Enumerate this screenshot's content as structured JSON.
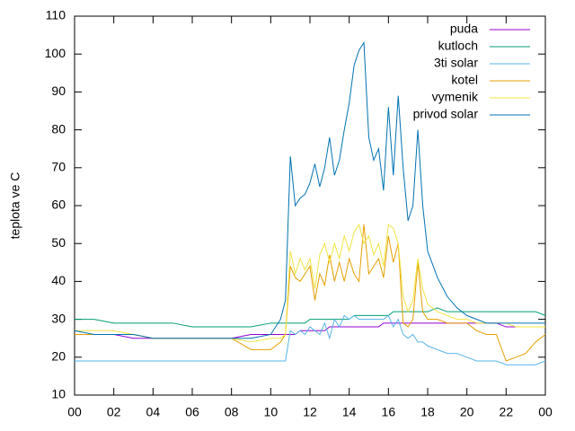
{
  "chart_data": {
    "type": "line",
    "ylabel": "teplota ve C",
    "x": [
      0,
      1,
      2,
      3,
      4,
      5,
      6,
      7,
      8,
      9,
      10,
      10.5,
      10.75,
      11,
      11.25,
      11.5,
      11.75,
      12,
      12.25,
      12.5,
      12.75,
      13,
      13.25,
      13.5,
      13.75,
      14,
      14.25,
      14.5,
      14.75,
      15,
      15.25,
      15.5,
      15.75,
      16,
      16.25,
      16.5,
      16.75,
      17,
      17.25,
      17.5,
      17.75,
      18,
      18.5,
      19,
      19.5,
      20,
      20.5,
      21,
      21.5,
      22,
      22.5,
      23,
      23.5,
      24
    ],
    "series": [
      {
        "name": "puda",
        "color": "#9400d3",
        "values": [
          26,
          26,
          26,
          25,
          25,
          25,
          25,
          25,
          25,
          26,
          26,
          26,
          26,
          26,
          26,
          27,
          27,
          27,
          27,
          27,
          27,
          28,
          28,
          28,
          28,
          28,
          28,
          28,
          28,
          28,
          28,
          28,
          29,
          29,
          29,
          29,
          29,
          29,
          29,
          29,
          29,
          29,
          29,
          29,
          29,
          29,
          29,
          29,
          29,
          28,
          28,
          28,
          28,
          28
        ]
      },
      {
        "name": "kutloch",
        "color": "#009e73",
        "values": [
          30,
          30,
          29,
          29,
          29,
          29,
          28,
          28,
          28,
          28,
          29,
          29,
          29,
          29,
          29,
          29,
          29,
          30,
          30,
          30,
          30,
          30,
          30,
          30,
          30,
          30,
          31,
          31,
          31,
          31,
          31,
          31,
          31,
          31,
          32,
          32,
          32,
          32,
          32,
          32,
          32,
          32,
          33,
          32,
          32,
          32,
          32,
          32,
          32,
          32,
          32,
          32,
          32,
          31
        ]
      },
      {
        "name": "3ti solar",
        "color": "#56b4e9",
        "values": [
          19,
          19,
          19,
          19,
          19,
          19,
          19,
          19,
          19,
          19,
          19,
          19,
          19,
          27,
          26,
          27,
          26,
          28,
          27,
          26,
          29,
          25,
          30,
          28,
          31,
          30,
          31,
          30,
          30,
          30,
          30,
          30,
          30,
          31,
          28,
          30,
          26,
          25,
          26,
          24,
          24,
          23,
          22,
          21,
          21,
          20,
          19,
          19,
          19,
          18,
          18,
          18,
          18,
          19
        ]
      },
      {
        "name": "kotel",
        "color": "#e69f00",
        "values": [
          26,
          26,
          26,
          26,
          25,
          25,
          25,
          25,
          25,
          22,
          22,
          24,
          26,
          44,
          41,
          40,
          42,
          44,
          35,
          42,
          39,
          47,
          40,
          45,
          40,
          46,
          42,
          40,
          55,
          42,
          44,
          46,
          41,
          52,
          45,
          50,
          29,
          28,
          30,
          45,
          32,
          30,
          30,
          29,
          29,
          29,
          27,
          26,
          26,
          19,
          20,
          21,
          24,
          26
        ]
      },
      {
        "name": "vymenik",
        "color": "#f0e442",
        "values": [
          27,
          27,
          27,
          26,
          25,
          25,
          25,
          25,
          25,
          24,
          25,
          25,
          26,
          48,
          42,
          46,
          43,
          46,
          38,
          47,
          50,
          45,
          50,
          46,
          52,
          48,
          53,
          55,
          50,
          52,
          47,
          50,
          44,
          55,
          54,
          50,
          36,
          32,
          35,
          46,
          38,
          34,
          32,
          31,
          30,
          30,
          29,
          29,
          29,
          29,
          28,
          28,
          28,
          28
        ]
      },
      {
        "name": "privod solar",
        "color": "#0072b2",
        "values": [
          27,
          26,
          26,
          26,
          25,
          25,
          25,
          25,
          25,
          25,
          26,
          30,
          35,
          73,
          60,
          62,
          63,
          66,
          71,
          65,
          70,
          78,
          68,
          72,
          80,
          87,
          97,
          101,
          103,
          78,
          72,
          75,
          64,
          86,
          68,
          89,
          70,
          56,
          60,
          80,
          60,
          48,
          41,
          36,
          33,
          31,
          30,
          29,
          29,
          29,
          29,
          29,
          29,
          29
        ]
      }
    ],
    "xlim": [
      0,
      24
    ],
    "xticks": [
      {
        "value": 0,
        "label": "00"
      },
      {
        "value": 2,
        "label": "02"
      },
      {
        "value": 4,
        "label": "04"
      },
      {
        "value": 6,
        "label": "06"
      },
      {
        "value": 8,
        "label": "08"
      },
      10,
      12,
      14,
      16,
      18,
      20,
      22,
      {
        "value": 24,
        "label": "00"
      }
    ],
    "ylim": [
      10,
      110
    ],
    "yticks": [
      10,
      20,
      30,
      40,
      50,
      60,
      70,
      80,
      90,
      100,
      110
    ],
    "legend": "top-right"
  }
}
